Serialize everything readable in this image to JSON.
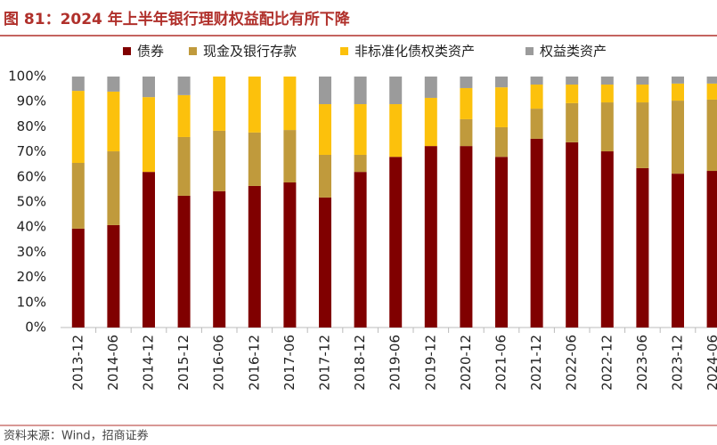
{
  "chart_data": {
    "type": "stacked_bar",
    "title": "图 81：2024 年上半年银行理财权益配比有所下降",
    "source": "资料来源：Wind，招商证券",
    "categories": [
      "2013-12",
      "2014-06",
      "2014-12",
      "2015-12",
      "2016-06",
      "2016-12",
      "2017-06",
      "2017-12",
      "2018-12",
      "2019-06",
      "2019-12",
      "2020-12",
      "2021-06",
      "2021-12",
      "2022-06",
      "2022-12",
      "2023-06",
      "2023-12",
      "2024-06"
    ],
    "series": [
      {
        "name": "债券",
        "color": "#800000",
        "values": [
          39.4,
          40.8,
          62,
          52.5,
          54.3,
          56.4,
          57.8,
          51.8,
          62,
          68,
          72.3,
          72.3,
          68,
          75.2,
          73.8,
          70.2,
          63.5,
          61.3,
          62.4
        ]
      },
      {
        "name": "现金及银行存款",
        "color": "#c09a3c",
        "values": [
          26.2,
          29.4,
          0,
          23.4,
          24.1,
          21.3,
          20.9,
          17,
          6.8,
          0,
          0,
          10.7,
          11.8,
          12,
          15.6,
          19.5,
          26.2,
          29.1,
          28.4
        ]
      },
      {
        "name": "非标准化债权类资产",
        "color": "#fcc10c",
        "values": [
          28.7,
          23.8,
          29.8,
          16.7,
          21.6,
          22.3,
          21.3,
          20.2,
          20.2,
          21,
          19.2,
          12.4,
          15.9,
          9.6,
          7.4,
          7.1,
          7.1,
          6.8,
          6.4
        ]
      },
      {
        "name": "权益类资产",
        "color": "#9b9b9b",
        "values": [
          5.7,
          6,
          8.2,
          7.4,
          0,
          0,
          0,
          11,
          11,
          11,
          8.5,
          4.6,
          4.3,
          3.2,
          3.2,
          3.2,
          3.2,
          2.8,
          2.8
        ]
      }
    ],
    "ylim": [
      0,
      100
    ],
    "yticks": [
      {
        "value": 0,
        "label": "0%"
      },
      {
        "value": 10,
        "label": "10%"
      },
      {
        "value": 20,
        "label": "20%"
      },
      {
        "value": 30,
        "label": "30%"
      },
      {
        "value": 40,
        "label": "40%"
      },
      {
        "value": 50,
        "label": "50%"
      },
      {
        "value": 60,
        "label": "60%"
      },
      {
        "value": 70,
        "label": "70%"
      },
      {
        "value": 80,
        "label": "80%"
      },
      {
        "value": 90,
        "label": "90%"
      },
      {
        "value": 100,
        "label": "100%"
      }
    ]
  }
}
